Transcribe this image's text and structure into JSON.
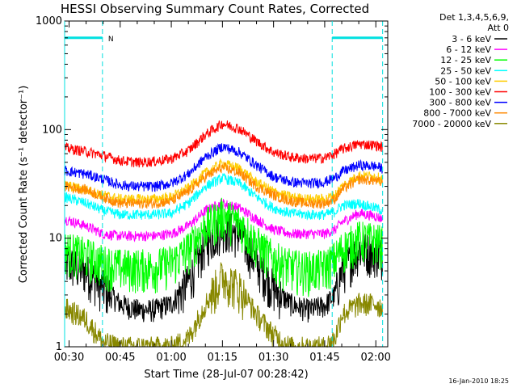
{
  "chart_data": {
    "type": "line",
    "title": "HESSI Observing Summary Count Rates, Corrected",
    "xlabel": "Start Time (28-Jul-07 00:28:42)",
    "ylabel": "Corrected Count Rate (s⁻¹ detector⁻¹)",
    "x_range_min": [
      28.7,
      123.5
    ],
    "ylim": [
      1,
      1000
    ],
    "y_scale": "log",
    "x_ticks": [
      {
        "min": 30,
        "label": "00:30"
      },
      {
        "min": 45,
        "label": "00:45"
      },
      {
        "min": 60,
        "label": "01:00"
      },
      {
        "min": 75,
        "label": "01:15"
      },
      {
        "min": 90,
        "label": "01:30"
      },
      {
        "min": 105,
        "label": "01:45"
      },
      {
        "min": 120,
        "label": "02:00"
      }
    ],
    "y_ticks": [
      {
        "value": 1,
        "label": "1"
      },
      {
        "value": 10,
        "label": "10"
      },
      {
        "value": 100,
        "label": "100"
      },
      {
        "value": 1000,
        "label": "1000"
      }
    ],
    "legend_header": [
      "Det 1,3,4,5,6,9,",
      "Att 0"
    ],
    "legend_position": "right",
    "footer_timestamp": "16-Jan-2010 18:25",
    "night_marker_label": "N",
    "night_intervals_min": [
      [
        28.7,
        39.8
      ],
      [
        107.2,
        122.0
      ]
    ],
    "series": [
      {
        "name": "3 - 6 keV",
        "color": "#000000",
        "x": [
          28.7,
          35,
          40,
          45,
          50,
          55,
          60,
          65,
          70,
          75,
          80,
          85,
          90,
          95,
          100,
          105,
          108,
          110,
          115,
          120,
          122
        ],
        "y": [
          6,
          5,
          3.5,
          2.5,
          2.2,
          2.2,
          2.5,
          4,
          9,
          13,
          11,
          6,
          3.5,
          2.5,
          2.2,
          2.4,
          3,
          5,
          8,
          7.5,
          7
        ]
      },
      {
        "name": "6 - 12 keV",
        "color": "#ff00ff",
        "x": [
          28.7,
          35,
          40,
          45,
          50,
          55,
          60,
          65,
          70,
          75,
          80,
          85,
          90,
          95,
          100,
          105,
          108,
          110,
          115,
          120,
          122
        ],
        "y": [
          15,
          13,
          11,
          10.5,
          10.5,
          10.5,
          11,
          13,
          18,
          21,
          19,
          15,
          12,
          11,
          11,
          11,
          12,
          14,
          17,
          16,
          15
        ]
      },
      {
        "name": "12 - 25 keV",
        "color": "#00ff00",
        "x": [
          28.7,
          35,
          40,
          45,
          50,
          55,
          60,
          65,
          70,
          75,
          80,
          85,
          90,
          95,
          100,
          105,
          108,
          110,
          115,
          120,
          122
        ],
        "y": [
          8,
          7,
          6,
          5.5,
          5.5,
          5.5,
          6,
          8,
          13,
          16.5,
          14,
          9,
          6.5,
          5.5,
          5.2,
          5.5,
          6.5,
          8,
          10,
          9.5,
          9
        ]
      },
      {
        "name": "25 - 50 keV",
        "color": "#00ffff",
        "x": [
          28.7,
          35,
          40,
          45,
          50,
          55,
          60,
          65,
          70,
          75,
          80,
          85,
          90,
          95,
          100,
          105,
          108,
          110,
          115,
          120,
          122
        ],
        "y": [
          24,
          21,
          18,
          16.5,
          16.5,
          16.5,
          17,
          21,
          30,
          36,
          32,
          24,
          19,
          17,
          16.5,
          16.5,
          17.5,
          20,
          21,
          19,
          18
        ]
      },
      {
        "name": "50 - 100 keV",
        "color": "#ffcc00",
        "x": [
          28.7,
          35,
          40,
          45,
          50,
          55,
          60,
          65,
          70,
          75,
          80,
          85,
          90,
          95,
          100,
          105,
          108,
          110,
          115,
          120,
          122
        ],
        "y": [
          31,
          28,
          25,
          23,
          23,
          23,
          24,
          29,
          40,
          49,
          44,
          33,
          27,
          24,
          23,
          23,
          25,
          30,
          38,
          37,
          35
        ]
      },
      {
        "name": "100 - 300 keV",
        "color": "#ff0000",
        "x": [
          28.7,
          35,
          40,
          45,
          50,
          55,
          60,
          65,
          70,
          75,
          80,
          85,
          90,
          95,
          100,
          105,
          108,
          110,
          115,
          120,
          122
        ],
        "y": [
          68,
          63,
          58,
          52,
          50,
          51,
          54,
          64,
          90,
          114,
          102,
          78,
          62,
          56,
          54,
          55,
          60,
          66,
          74,
          72,
          69
        ]
      },
      {
        "name": "300 - 800 keV",
        "color": "#0000ff",
        "x": [
          28.7,
          35,
          40,
          45,
          50,
          55,
          60,
          65,
          70,
          75,
          80,
          85,
          90,
          95,
          100,
          105,
          108,
          110,
          115,
          120,
          122
        ],
        "y": [
          42,
          39,
          35,
          31,
          30,
          30,
          32,
          39,
          56,
          70,
          62,
          47,
          37,
          33,
          32,
          33,
          36,
          41,
          47,
          46,
          44
        ]
      },
      {
        "name": "800 - 7000 keV",
        "color": "#ff8800",
        "x": [
          28.7,
          35,
          40,
          45,
          50,
          55,
          60,
          65,
          70,
          75,
          80,
          85,
          90,
          95,
          100,
          105,
          108,
          110,
          115,
          120,
          122
        ],
        "y": [
          30,
          28,
          24,
          21,
          21,
          21,
          22,
          27,
          37,
          45,
          40,
          30,
          25,
          22,
          21,
          21,
          23,
          28,
          35,
          34,
          32
        ]
      },
      {
        "name": "7000 - 20000 keV",
        "color": "#888800",
        "x": [
          28.7,
          35,
          40,
          45,
          50,
          55,
          60,
          65,
          70,
          75,
          80,
          85,
          90,
          95,
          100,
          105,
          108,
          110,
          115,
          120,
          122
        ],
        "y": [
          2.3,
          1.8,
          1.1,
          1,
          1,
          1,
          1,
          1.2,
          2.5,
          4.5,
          3.5,
          2,
          1.3,
          1,
          1,
          1,
          1.2,
          2,
          2.5,
          2.5,
          2.3
        ]
      }
    ]
  }
}
